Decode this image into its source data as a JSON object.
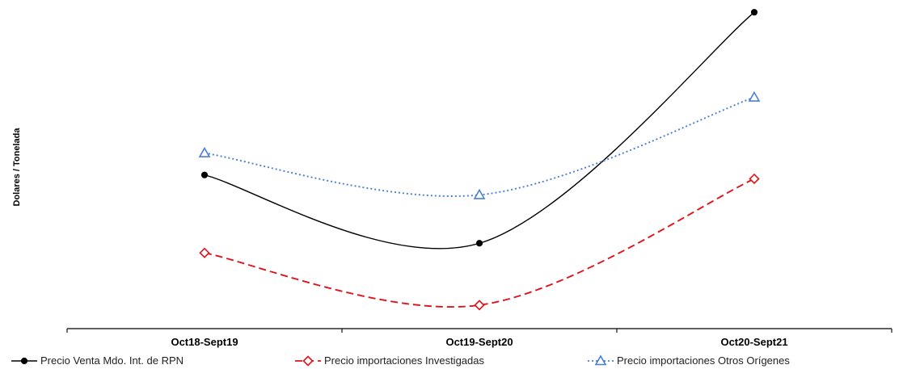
{
  "chart_data": {
    "type": "line",
    "title": "",
    "xlabel": "",
    "ylabel": "Dolares / Tonelada",
    "categories": [
      "Oct18-Sept19",
      "Oct19-Sept20",
      "Oct20-Sept21"
    ],
    "ylim": [
      0,
      100
    ],
    "grid": false,
    "legend_position": "bottom",
    "series": [
      {
        "name": "Precio Venta  Mdo. Int. de RPN",
        "values": [
          47.7,
          26.5,
          98.2
        ],
        "color": "#000000",
        "line_style": "solid",
        "marker": "circle"
      },
      {
        "name": "Precio importaciones Investigadas",
        "values": [
          23.5,
          7.3,
          46.5
        ],
        "color": "#e0131b",
        "line_style": "dashed",
        "marker": "diamond"
      },
      {
        "name": "Precio importaciones Otros Orígenes",
        "values": [
          54.5,
          41.5,
          71.8
        ],
        "color": "#4a7fd4",
        "line_style": "dotted",
        "marker": "triangle"
      }
    ]
  }
}
